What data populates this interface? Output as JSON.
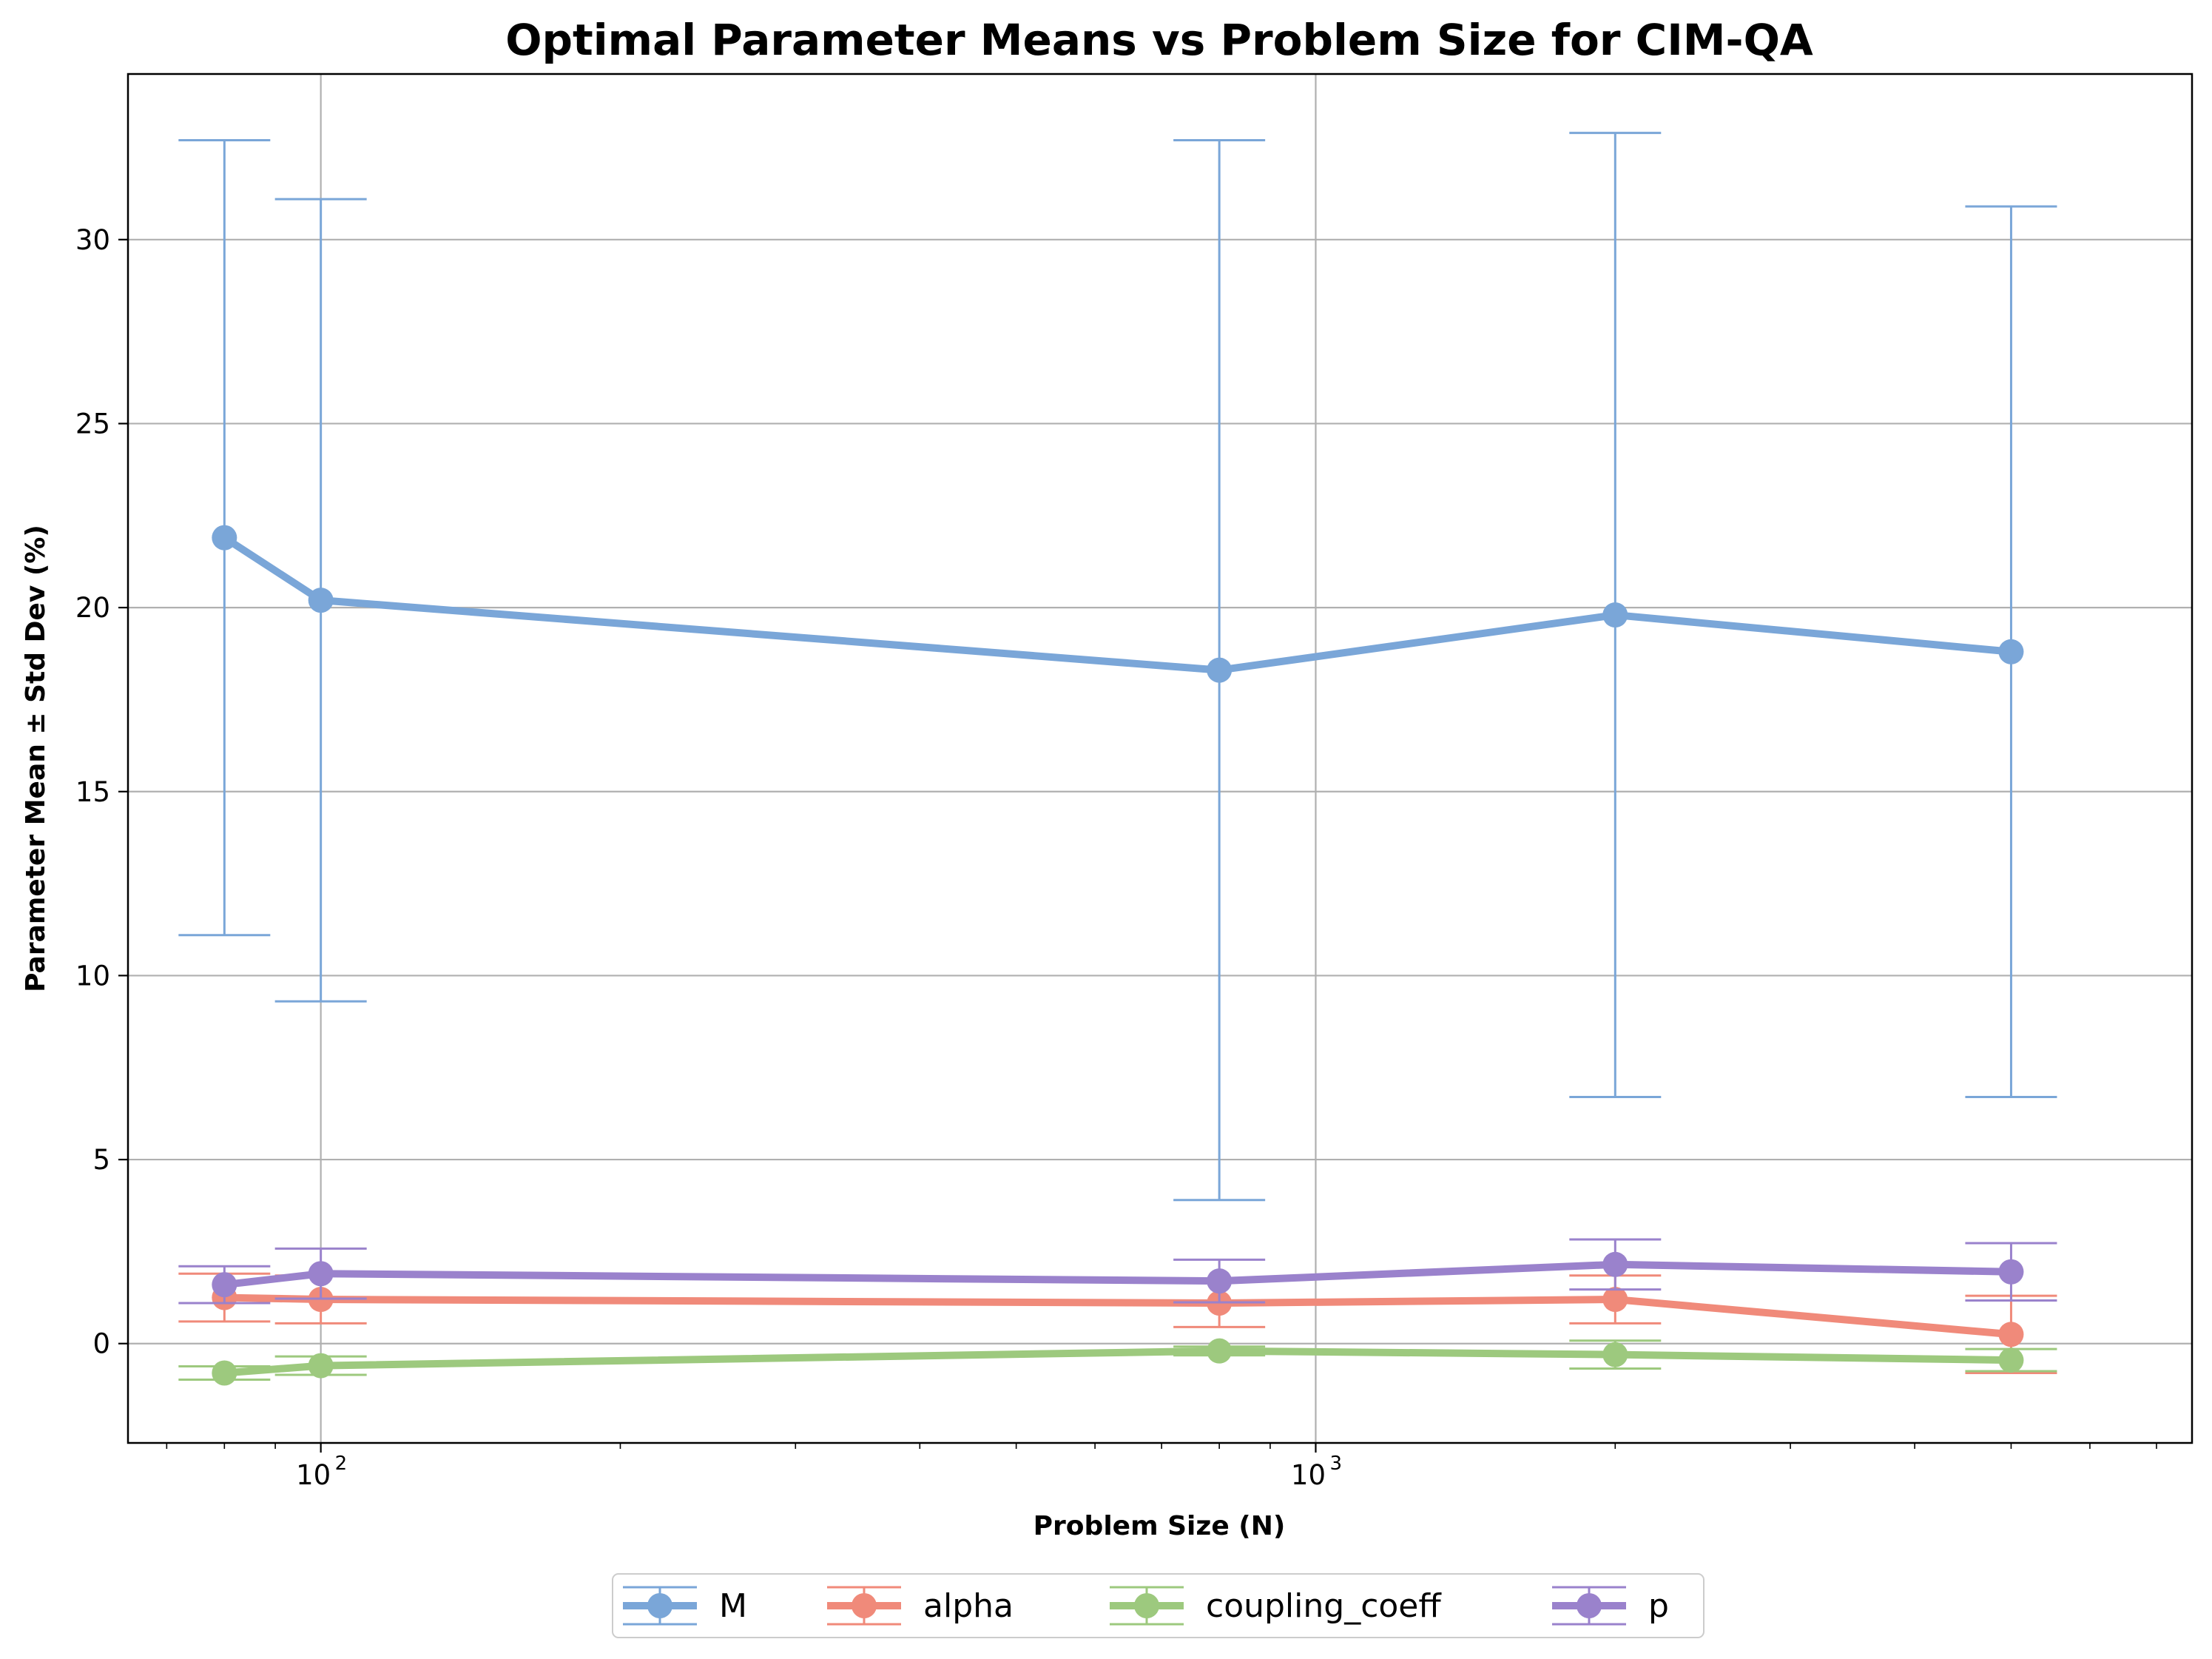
{
  "chart_data": {
    "type": "line",
    "title": "Optimal Parameter Means vs Problem Size for CIM-QA",
    "xlabel": "Problem Size (N)",
    "ylabel": "Parameter Mean ± Std Dev (%)",
    "xscale": "log",
    "xlim": [
      64,
      7600
    ],
    "ylim": [
      -2.7,
      34.5
    ],
    "x_ticks": [
      100,
      1000
    ],
    "x_tick_labels": [
      {
        "base": "10",
        "exp": "2"
      },
      {
        "base": "10",
        "exp": "3"
      }
    ],
    "y_ticks": [
      0,
      5,
      10,
      15,
      20,
      25,
      30
    ],
    "y_tick_labels": [
      "0",
      "5",
      "10",
      "15",
      "20",
      "25",
      "30"
    ],
    "grid": true,
    "legend_position": "bottom-center",
    "x": [
      80,
      100,
      800,
      2000,
      5000
    ],
    "series": [
      {
        "name": "M",
        "color": "#7aa6d8",
        "values": [
          21.9,
          20.2,
          18.3,
          19.8,
          18.8
        ],
        "std": [
          10.8,
          10.9,
          14.4,
          13.1,
          12.1
        ]
      },
      {
        "name": "alpha",
        "color": "#f08a7a",
        "values": [
          1.25,
          1.2,
          1.1,
          1.2,
          0.25
        ],
        "std": [
          0.65,
          0.65,
          0.65,
          0.65,
          1.05
        ]
      },
      {
        "name": "coupling_coeff",
        "color": "#9dc97e",
        "values": [
          -0.8,
          -0.6,
          -0.2,
          -0.3,
          -0.45
        ],
        "std": [
          0.18,
          0.25,
          0.12,
          0.38,
          0.3
        ]
      },
      {
        "name": "p",
        "color": "#9a82cc",
        "values": [
          1.6,
          1.9,
          1.7,
          2.15,
          1.95
        ],
        "std": [
          0.5,
          0.68,
          0.58,
          0.68,
          0.78
        ]
      }
    ]
  }
}
